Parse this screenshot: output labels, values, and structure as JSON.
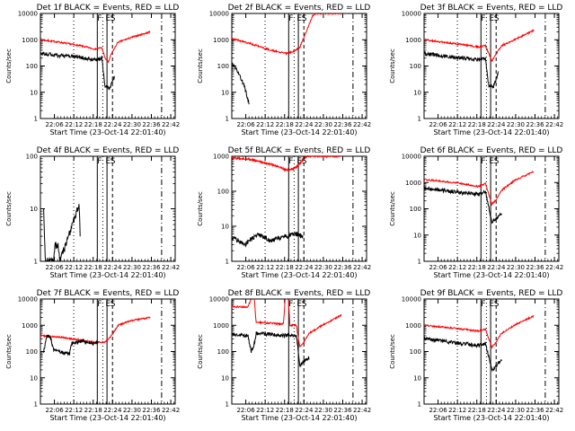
{
  "figure": {
    "xlabel": "Start Time (23-Oct-14 22:01:40)",
    "ylabel": "Counts/sec",
    "yticks": [
      "1",
      "10",
      "100",
      "1000",
      "10000"
    ]
  },
  "chart_data": [
    {
      "type": "line",
      "title": "Det 1f BLACK = Events, RED = LLD",
      "xlabel": "Start Time (23-Oct-14 22:01:40)",
      "ylabel": "Counts/sec",
      "xtick_labels": [
        "22:06",
        "22:12",
        "22:18",
        "22:24",
        "22:30",
        "22:36",
        "22:42"
      ],
      "xlim": [
        0,
        41.7
      ],
      "ylim": [
        1,
        10000
      ],
      "yscale": "log",
      "markers": [
        "F",
        "E",
        "S"
      ],
      "x_start": 0,
      "x_end": 34,
      "series": [
        {
          "name": "RED",
          "color": "#ff0000",
          "anchors": [
            [
              0,
              1000
            ],
            [
              6,
              800
            ],
            [
              12,
              600
            ],
            [
              17,
              440
            ],
            [
              19,
              500
            ],
            [
              20,
              200
            ],
            [
              21,
              140
            ],
            [
              22,
              300
            ],
            [
              24,
              800
            ],
            [
              28,
              1200
            ],
            [
              34,
              2000
            ]
          ]
        },
        {
          "name": "BLACK",
          "color": "#000000",
          "anchors": [
            [
              0,
              300
            ],
            [
              6,
              250
            ],
            [
              12,
              220
            ],
            [
              17,
              170
            ],
            [
              19,
              200
            ],
            [
              20,
              15
            ],
            [
              21.5,
              15
            ],
            [
              23,
              40
            ]
          ]
        }
      ]
    },
    {
      "type": "line",
      "title": "Det 2f BLACK = Events, RED = LLD",
      "xlabel": "Start Time (23-Oct-14 22:01:40)",
      "ylabel": "Counts/sec",
      "xtick_labels": [
        "22:06",
        "22:12",
        "22:18",
        "22:24",
        "22:30",
        "22:36",
        "22:42"
      ],
      "xlim": [
        0,
        41.7
      ],
      "ylim": [
        1,
        10000
      ],
      "yscale": "log",
      "markers": [
        "F",
        "E",
        "S"
      ],
      "x_start": 0,
      "x_end": 34,
      "series": [
        {
          "name": "RED",
          "color": "#ff0000",
          "anchors": [
            [
              0,
              1100
            ],
            [
              6,
              700
            ],
            [
              12,
              400
            ],
            [
              17,
              300
            ],
            [
              19,
              350
            ],
            [
              21,
              500
            ],
            [
              23,
              2000
            ],
            [
              25,
              8000
            ],
            [
              26,
              10000
            ],
            [
              34,
              10000
            ]
          ]
        },
        {
          "name": "BLACK",
          "color": "#000000",
          "anchors": [
            [
              0,
              120
            ],
            [
              2,
              60
            ],
            [
              4,
              15
            ],
            [
              5.5,
              3
            ]
          ]
        }
      ]
    },
    {
      "type": "line",
      "title": "Det 3f BLACK = Events, RED = LLD",
      "xlabel": "Start Time (23-Oct-14 22:01:40)",
      "ylabel": "Counts/sec",
      "xtick_labels": [
        "22:06",
        "22:12",
        "22:18",
        "22:24",
        "22:30",
        "22:36",
        "22:42"
      ],
      "xlim": [
        0,
        41.7
      ],
      "ylim": [
        1,
        10000
      ],
      "yscale": "log",
      "markers": [
        "F",
        "E",
        "S"
      ],
      "x_start": 0,
      "x_end": 34,
      "series": [
        {
          "name": "RED",
          "color": "#ff0000",
          "anchors": [
            [
              0,
              1000
            ],
            [
              6,
              800
            ],
            [
              12,
              650
            ],
            [
              17,
              520
            ],
            [
              19,
              600
            ],
            [
              20,
              300
            ],
            [
              21,
              150
            ],
            [
              22,
              250
            ],
            [
              24,
              600
            ],
            [
              28,
              1000
            ],
            [
              34,
              2300
            ]
          ]
        },
        {
          "name": "BLACK",
          "color": "#000000",
          "anchors": [
            [
              0,
              300
            ],
            [
              6,
              240
            ],
            [
              12,
              200
            ],
            [
              17,
              170
            ],
            [
              19,
              190
            ],
            [
              20,
              18
            ],
            [
              21.5,
              16
            ],
            [
              23,
              60
            ]
          ]
        }
      ]
    },
    {
      "type": "line",
      "title": "Det 4f BLACK = Events, RED = LLD",
      "xlabel": "Start Time (23-Oct-14 22:01:40)",
      "ylabel": "Counts/sec",
      "xtick_labels": [
        "22:06",
        "22:12",
        "22:18",
        "22:24",
        "22:30",
        "22:36",
        "22:42"
      ],
      "xlim": [
        0,
        41.7
      ],
      "ylim": [
        1,
        100
      ],
      "yscale": "log",
      "markers": [
        "F",
        "E",
        "S"
      ],
      "x_start": 0,
      "x_end": 34,
      "series": [
        {
          "name": "BLACK",
          "color": "#000000",
          "anchors": [
            [
              1,
              10
            ],
            [
              1.5,
              1
            ],
            [
              4,
              1
            ],
            [
              4.5,
              2
            ],
            [
              5.5,
              2
            ],
            [
              6,
              1
            ],
            [
              12,
              12
            ],
            [
              12.3,
              3
            ]
          ]
        }
      ]
    },
    {
      "type": "line",
      "title": "Det 5f BLACK = Events, RED = LLD",
      "xlabel": "Start Time (23-Oct-14 22:01:40)",
      "ylabel": "Counts/sec",
      "xtick_labels": [
        "22:06",
        "22:12",
        "22:18",
        "22:24",
        "22:30",
        "22:36",
        "22:42"
      ],
      "xlim": [
        0,
        41.7
      ],
      "ylim": [
        1,
        1000
      ],
      "yscale": "log",
      "markers": [
        "F",
        "E",
        "S"
      ],
      "x_start": 0,
      "x_end": 34,
      "series": [
        {
          "name": "RED",
          "color": "#ff0000",
          "anchors": [
            [
              0,
              900
            ],
            [
              6,
              800
            ],
            [
              12,
              600
            ],
            [
              17,
              400
            ],
            [
              19,
              430
            ],
            [
              21,
              600
            ],
            [
              23,
              1000
            ],
            [
              25,
              1000
            ],
            [
              34,
              1000
            ]
          ]
        },
        {
          "name": "BLACK",
          "color": "#000000",
          "anchors": [
            [
              0,
              5
            ],
            [
              4,
              3
            ],
            [
              8,
              6
            ],
            [
              12,
              4
            ],
            [
              16,
              5
            ],
            [
              20,
              6
            ],
            [
              22,
              5
            ]
          ]
        }
      ]
    },
    {
      "type": "line",
      "title": "Det 6f BLACK = Events, RED = LLD",
      "xlabel": "Start Time (23-Oct-14 22:01:40)",
      "ylabel": "Counts/sec",
      "xtick_labels": [
        "22:06",
        "22:12",
        "22:18",
        "22:24",
        "22:30",
        "22:36",
        "22:42"
      ],
      "xlim": [
        0,
        41.7
      ],
      "ylim": [
        1,
        10000
      ],
      "yscale": "log",
      "markers": [
        "F",
        "E",
        "S"
      ],
      "x_start": 0,
      "x_end": 34,
      "series": [
        {
          "name": "RED",
          "color": "#ff0000",
          "anchors": [
            [
              0,
              1300
            ],
            [
              6,
              1100
            ],
            [
              12,
              900
            ],
            [
              17,
              700
            ],
            [
              19,
              900
            ],
            [
              21,
              150
            ],
            [
              22,
              200
            ],
            [
              24,
              500
            ],
            [
              28,
              1200
            ],
            [
              34,
              2600
            ]
          ]
        },
        {
          "name": "BLACK",
          "color": "#000000",
          "anchors": [
            [
              0,
              600
            ],
            [
              6,
              500
            ],
            [
              12,
              400
            ],
            [
              17,
              350
            ],
            [
              19,
              450
            ],
            [
              21,
              30
            ],
            [
              22,
              40
            ],
            [
              24,
              70
            ]
          ]
        }
      ]
    },
    {
      "type": "line",
      "title": "Det 7f BLACK = Events, RED = LLD",
      "xlabel": "Start Time (23-Oct-14 22:01:40)",
      "ylabel": "Counts/sec",
      "xtick_labels": [
        "22:06",
        "22:12",
        "22:18",
        "22:24",
        "22:30",
        "22:36",
        "22:42"
      ],
      "xlim": [
        0,
        41.7
      ],
      "ylim": [
        1,
        10000
      ],
      "yscale": "log",
      "markers": [
        "F",
        "E",
        "S"
      ],
      "x_start": 0,
      "x_end": 34,
      "series": [
        {
          "name": "RED",
          "color": "#ff0000",
          "anchors": [
            [
              0,
              400
            ],
            [
              6,
              350
            ],
            [
              12,
              280
            ],
            [
              17,
              220
            ],
            [
              20,
              230
            ],
            [
              22,
              400
            ],
            [
              24,
              1000
            ],
            [
              28,
              1500
            ],
            [
              34,
              2000
            ]
          ]
        },
        {
          "name": "BLACK",
          "color": "#000000",
          "anchors": [
            [
              1,
              100
            ],
            [
              2,
              400
            ],
            [
              3,
              380
            ],
            [
              4,
              120
            ],
            [
              9,
              80
            ],
            [
              9.5,
              200
            ],
            [
              13,
              250
            ],
            [
              16,
              200
            ],
            [
              18,
              220
            ]
          ]
        }
      ]
    },
    {
      "type": "line",
      "title": "Det 8f BLACK = Events, RED = LLD",
      "xlabel": "Start Time (23-Oct-14 22:01:40)",
      "ylabel": "Counts/sec",
      "xtick_labels": [
        "22:06",
        "22:12",
        "22:18",
        "22:24",
        "22:30",
        "22:36",
        "22:42"
      ],
      "xlim": [
        0,
        41.7
      ],
      "ylim": [
        1,
        10000
      ],
      "yscale": "log",
      "markers": [
        "F",
        "E",
        "S"
      ],
      "x_start": 0,
      "x_end": 34,
      "series": [
        {
          "name": "RED",
          "color": "#ff0000",
          "anchors": [
            [
              0,
              5000
            ],
            [
              5,
              5000
            ],
            [
              6,
              10000
            ],
            [
              7,
              10000
            ],
            [
              7.5,
              1300
            ],
            [
              12,
              1200
            ],
            [
              16,
              1100
            ],
            [
              16.5,
              10000
            ],
            [
              17.5,
              10000
            ],
            [
              18,
              1000
            ],
            [
              20,
              1000
            ],
            [
              21,
              150
            ],
            [
              22,
              200
            ],
            [
              24,
              500
            ],
            [
              28,
              1000
            ],
            [
              34,
              2500
            ]
          ]
        },
        {
          "name": "BLACK",
          "color": "#000000",
          "anchors": [
            [
              0,
              450
            ],
            [
              5,
              400
            ],
            [
              6,
              100
            ],
            [
              7,
              200
            ],
            [
              7.5,
              500
            ],
            [
              12,
              450
            ],
            [
              16,
              400
            ],
            [
              18,
              450
            ],
            [
              20,
              400
            ],
            [
              21,
              30
            ],
            [
              22,
              40
            ],
            [
              24,
              60
            ]
          ]
        }
      ]
    },
    {
      "type": "line",
      "title": "Det 9f BLACK = Events, RED = LLD",
      "xlabel": "Start Time (23-Oct-14 22:01:40)",
      "ylabel": "Counts/sec",
      "xtick_labels": [
        "22:06",
        "22:12",
        "22:18",
        "22:24",
        "22:30",
        "22:36",
        "22:42"
      ],
      "xlim": [
        0,
        41.7
      ],
      "ylim": [
        1,
        10000
      ],
      "yscale": "log",
      "markers": [
        "F",
        "E",
        "S"
      ],
      "x_start": 0,
      "x_end": 34,
      "series": [
        {
          "name": "RED",
          "color": "#ff0000",
          "anchors": [
            [
              0,
              1000
            ],
            [
              6,
              850
            ],
            [
              12,
              700
            ],
            [
              17,
              600
            ],
            [
              19,
              700
            ],
            [
              21,
              150
            ],
            [
              22,
              200
            ],
            [
              24,
              500
            ],
            [
              28,
              1000
            ],
            [
              34,
              2300
            ]
          ]
        },
        {
          "name": "BLACK",
          "color": "#000000",
          "anchors": [
            [
              0,
              300
            ],
            [
              6,
              250
            ],
            [
              12,
              200
            ],
            [
              17,
              170
            ],
            [
              19,
              200
            ],
            [
              21,
              20
            ],
            [
              22,
              25
            ],
            [
              24,
              50
            ]
          ]
        }
      ]
    }
  ]
}
